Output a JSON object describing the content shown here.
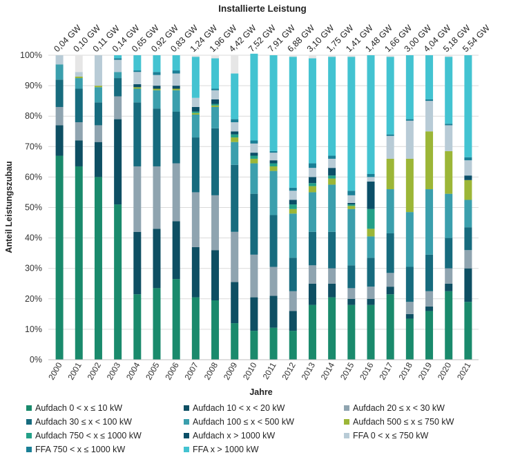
{
  "chart_data": {
    "type": "bar",
    "stacked": true,
    "title": "Installierte Leistung",
    "xlabel": "Jahre",
    "ylabel": "Anteil Leistungszubau",
    "ylim": [
      0,
      100
    ],
    "yticks": [
      "0%",
      "10%",
      "20%",
      "30%",
      "40%",
      "50%",
      "60%",
      "70%",
      "80%",
      "90%",
      "100%"
    ],
    "categories": [
      "2000",
      "2001",
      "2002",
      "2003",
      "2004",
      "2005",
      "2006",
      "2007",
      "2008",
      "2009",
      "2010",
      "2011",
      "2012",
      "2013",
      "2014",
      "2015",
      "2016",
      "2017",
      "2018",
      "2019",
      "2020",
      "2021"
    ],
    "totals": [
      "0,04 GW",
      "0,10 GW",
      "0,11 GW",
      "0,14 GW",
      "0,65 GW",
      "0,92 GW",
      "0,83 GW",
      "1,24 GW",
      "1,96 GW",
      "4,42 GW",
      "7,52 GW",
      "7,91 GW",
      "6,88 GW",
      "3,10 GW",
      "1,75 GW",
      "1,41 GW",
      "1,48 GW",
      "1,66 GW",
      "3,00 GW",
      "4,04 GW",
      "5,18 GW",
      "5,54 GW"
    ],
    "grid": true,
    "legend_position": "bottom",
    "series": [
      {
        "name": "Aufdach 0 < x ≤ 10 kW",
        "color": "#1a8a6c",
        "values": [
          67,
          63.5,
          60,
          51,
          21.5,
          23.5,
          26.5,
          20.5,
          19.5,
          12,
          9.5,
          10.5,
          9.5,
          18,
          20.5,
          18,
          18,
          21.5,
          13.5,
          16,
          22.5,
          19
        ]
      },
      {
        "name": "Aufdach 10 < x < 20 kW",
        "color": "#0e4f63",
        "values": [
          10,
          8.5,
          11.5,
          28,
          20.5,
          19.5,
          19,
          16.5,
          16.5,
          13.5,
          11,
          10.5,
          6.5,
          7,
          4.5,
          2,
          2,
          2.5,
          1.5,
          1.5,
          2.5,
          11
        ]
      },
      {
        "name": "Aufdach 20 ≤ x < 30 kW",
        "color": "#8fa4b0",
        "values": [
          6,
          6,
          5.5,
          7.5,
          21.5,
          20.5,
          19,
          18,
          18,
          16.5,
          14,
          9.5,
          6.5,
          6,
          5,
          3.5,
          4,
          4.5,
          4,
          5,
          5,
          6
        ]
      },
      {
        "name": "Aufdach 30 ≤ x < 100 kW",
        "color": "#176b7e",
        "values": [
          9,
          11,
          7.5,
          6,
          21,
          19,
          17,
          18,
          22,
          22,
          20,
          17,
          11,
          11,
          12,
          7.5,
          9.5,
          13,
          11.5,
          12,
          10,
          7.5
        ]
      },
      {
        "name": "Aufdach 100 ≤ x < 500 kW",
        "color": "#3b9fad",
        "values": [
          5,
          3.5,
          5,
          2,
          4.5,
          6,
          7,
          7.5,
          7,
          7.5,
          10,
          14.5,
          14.5,
          13,
          15.5,
          18.5,
          7,
          14.5,
          18,
          21.5,
          14.5,
          9
        ]
      },
      {
        "name": "Aufdach 500 ≤ x ≤ 750 kW",
        "color": "#9cb637",
        "values": [
          0,
          0.5,
          0.5,
          0,
          0.5,
          0.5,
          0.5,
          0.5,
          0.5,
          1.5,
          1.5,
          1.5,
          1.5,
          2,
          2,
          1,
          2.5,
          10,
          17.5,
          19,
          14,
          6.5
        ]
      },
      {
        "name": "Aufdach 750 < x ≤ 1000 kW",
        "color": "#23a088",
        "values": [
          0,
          0,
          0,
          0,
          0,
          0,
          0,
          0.5,
          0.5,
          1,
          1,
          1,
          1.5,
          1,
          1,
          0.5,
          6.5,
          0,
          0,
          0,
          0,
          0
        ]
      },
      {
        "name": "Aufdach x > 1000 kW",
        "color": "#0b4f68",
        "values": [
          0,
          0,
          0,
          0,
          1,
          1,
          1,
          1.5,
          1.5,
          1,
          1,
          1,
          1.5,
          2,
          2.5,
          0.5,
          9,
          0,
          0,
          0,
          0,
          1.5
        ]
      },
      {
        "name": "FFA 0 < x ≤ 750 kW",
        "color": "#b8cbd6",
        "values": [
          3,
          1.5,
          10,
          4,
          4,
          3.5,
          4,
          3,
          3,
          3,
          3,
          2.5,
          3,
          3,
          3,
          2.5,
          1.5,
          7.5,
          12.5,
          10,
          8.5,
          5
        ]
      },
      {
        "name": "FFA 750 < x ≤ 1000 kW",
        "color": "#1a7f96",
        "values": [
          0,
          0,
          0,
          0.5,
          0.5,
          1,
          1,
          0,
          0.5,
          1,
          1,
          0.5,
          1,
          1.5,
          1,
          1.5,
          1,
          0.5,
          0.5,
          0.5,
          0.5,
          1
        ]
      },
      {
        "name": "FFA x > 1000 kW",
        "color": "#43c3d1",
        "values": [
          0,
          0,
          0,
          1,
          5,
          5.5,
          5,
          13.5,
          10,
          15,
          28.5,
          31.5,
          43,
          34.5,
          32.5,
          44,
          39,
          25.5,
          21,
          14.5,
          22,
          33.5
        ]
      }
    ]
  }
}
